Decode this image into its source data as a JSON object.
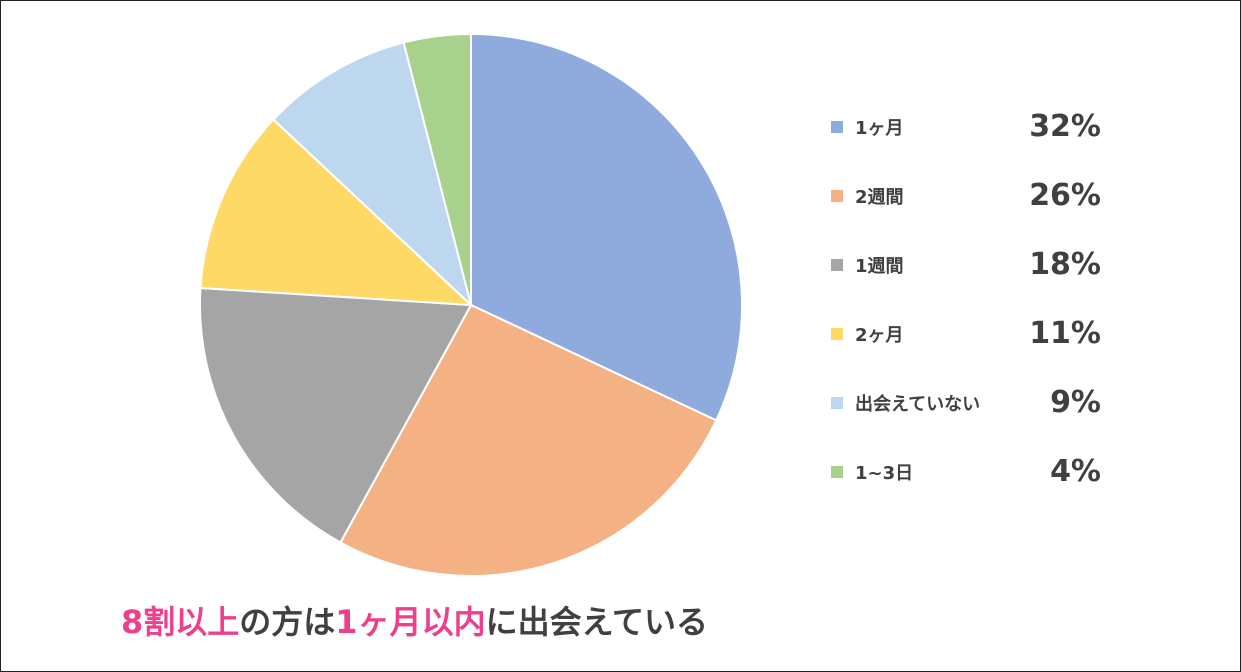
{
  "chart_data": {
    "type": "pie",
    "categories": [
      "1ヶ月",
      "2週間",
      "1週間",
      "2ヶ月",
      "出会えていない",
      "1~3日"
    ],
    "values": [
      32,
      26,
      18,
      11,
      9,
      4
    ],
    "value_labels": [
      "32%",
      "26%",
      "18%",
      "11%",
      "9%",
      "4%"
    ],
    "colors": [
      "#8faadc",
      "#f4b183",
      "#a5a5a5",
      "#ffd966",
      "#bdd7ee",
      "#a9d18e"
    ],
    "legend_position": "right",
    "start_angle": "top, clockwise"
  },
  "caption": {
    "part1": "8割以上",
    "part2": "の方は",
    "part3": "1ヶ月以内",
    "part4": "に出会えている",
    "highlight_color": "#ee3f8c"
  }
}
